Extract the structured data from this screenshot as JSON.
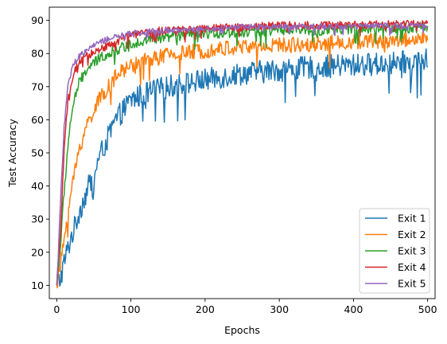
{
  "chart_data": {
    "type": "line",
    "xlabel": "Epochs",
    "ylabel": "Test Accuracy",
    "xlim": [
      -10,
      510
    ],
    "ylim": [
      6,
      94
    ],
    "xticks": [
      0,
      100,
      200,
      300,
      400,
      500
    ],
    "yticks": [
      10,
      20,
      30,
      40,
      50,
      60,
      70,
      80,
      90
    ],
    "grid": false,
    "legend_position": "lower right",
    "noise_amplitude": [
      3.5,
      2.4,
      1.6,
      1.2,
      0.9
    ],
    "series": [
      {
        "name": "Exit 1",
        "color": "#1f77b4",
        "x": [
          0,
          5,
          10,
          15,
          20,
          25,
          30,
          40,
          50,
          60,
          70,
          80,
          90,
          100,
          120,
          150,
          200,
          250,
          300,
          350,
          400,
          450,
          500
        ],
        "y": [
          10,
          12,
          17,
          21,
          25,
          28,
          32,
          38,
          44,
          50,
          55,
          60,
          63,
          66,
          68,
          70,
          72,
          74,
          75,
          76,
          76.5,
          77,
          78
        ]
      },
      {
        "name": "Exit 2",
        "color": "#ff7f0e",
        "x": [
          0,
          5,
          10,
          15,
          20,
          25,
          30,
          40,
          50,
          60,
          70,
          80,
          90,
          100,
          120,
          150,
          200,
          250,
          300,
          350,
          400,
          450,
          500
        ],
        "y": [
          10,
          16,
          24,
          32,
          39,
          45,
          51,
          58,
          63,
          67,
          70,
          73,
          75,
          76.5,
          78,
          79.5,
          81,
          82,
          82.5,
          83,
          83.5,
          84,
          84.5
        ]
      },
      {
        "name": "Exit 3",
        "color": "#2ca02c",
        "x": [
          0,
          5,
          10,
          15,
          20,
          25,
          30,
          40,
          50,
          60,
          70,
          80,
          90,
          100,
          120,
          150,
          200,
          250,
          300,
          350,
          400,
          450,
          500
        ],
        "y": [
          10,
          22,
          38,
          52,
          62,
          67,
          71,
          75,
          77,
          79,
          80,
          81,
          82,
          83,
          84,
          85,
          86,
          86.5,
          87,
          87,
          87.5,
          87.5,
          88
        ]
      },
      {
        "name": "Exit 4",
        "color": "#d62728",
        "x": [
          0,
          5,
          10,
          15,
          20,
          25,
          30,
          40,
          50,
          60,
          70,
          80,
          90,
          100,
          120,
          150,
          200,
          250,
          300,
          350,
          400,
          450,
          500
        ],
        "y": [
          10,
          26,
          50,
          66,
          72,
          75,
          77,
          79,
          80.5,
          81.5,
          82.5,
          83.5,
          84.5,
          85.5,
          86.5,
          87,
          87.5,
          88,
          88.5,
          88.5,
          88.7,
          88.8,
          89
        ]
      },
      {
        "name": "Exit 5",
        "color": "#9467bd",
        "x": [
          0,
          5,
          10,
          15,
          20,
          25,
          30,
          40,
          50,
          60,
          70,
          80,
          90,
          100,
          120,
          150,
          200,
          250,
          300,
          350,
          400,
          450,
          500
        ],
        "y": [
          10,
          35,
          58,
          70,
          75,
          77.5,
          79,
          81,
          82.5,
          83.5,
          84.5,
          85,
          85.5,
          86,
          86.5,
          87,
          87.5,
          88,
          88,
          88.2,
          88.3,
          88.4,
          88.5
        ]
      }
    ]
  }
}
